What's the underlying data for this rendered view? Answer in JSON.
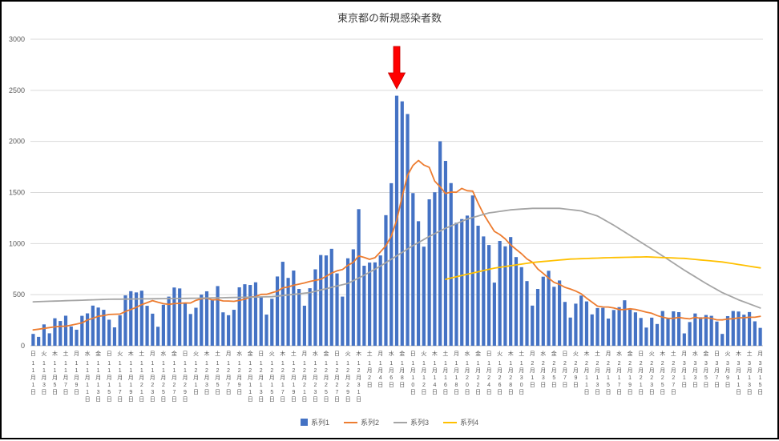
{
  "chart_data": {
    "type": "bar",
    "title": "東京都の新規感染者数",
    "ylabel": "",
    "xlabel": "",
    "ylim": [
      0,
      3000
    ],
    "yticks": [
      0,
      500,
      1000,
      1500,
      2000,
      2500,
      3000
    ],
    "x_range_description": "daily, 11月1日〜3月15日",
    "grid": "horizontal",
    "legend_position": "bottom",
    "annotation": {
      "shape": "down-arrow",
      "color": "#FF0000",
      "at_index": 67,
      "points_at_value": 2447
    },
    "tick_labels": [
      [
        "日",
        "11月1日"
      ],
      [
        "火",
        "11月3日"
      ],
      [
        "木",
        "11月5日"
      ],
      [
        "土",
        "11月7日"
      ],
      [
        "月",
        "11月9日"
      ],
      [
        "水",
        "11月11日"
      ],
      [
        "金",
        "11月13日"
      ],
      [
        "日",
        "11月15日"
      ],
      [
        "火",
        "11月17日"
      ],
      [
        "木",
        "11月19日"
      ],
      [
        "土",
        "11月21日"
      ],
      [
        "月",
        "11月23日"
      ],
      [
        "水",
        "11月25日"
      ],
      [
        "金",
        "11月27日"
      ],
      [
        "日",
        "11月29日"
      ],
      [
        "火",
        "12月1日"
      ],
      [
        "木",
        "12月3日"
      ],
      [
        "土",
        "12月5日"
      ],
      [
        "月",
        "12月7日"
      ],
      [
        "水",
        "12月9日"
      ],
      [
        "金",
        "12月11日"
      ],
      [
        "日",
        "12月13日"
      ],
      [
        "火",
        "12月15日"
      ],
      [
        "木",
        "12月17日"
      ],
      [
        "土",
        "12月19日"
      ],
      [
        "月",
        "12月21日"
      ],
      [
        "水",
        "12月23日"
      ],
      [
        "金",
        "12月25日"
      ],
      [
        "日",
        "12月27日"
      ],
      [
        "火",
        "12月29日"
      ],
      [
        "木",
        "12月31日"
      ],
      [
        "土",
        "1月2日"
      ],
      [
        "月",
        "1月4日"
      ],
      [
        "水",
        "1月6日"
      ],
      [
        "金",
        "1月8日"
      ],
      [
        "日",
        "1月10日"
      ],
      [
        "火",
        "1月12日"
      ],
      [
        "木",
        "1月14日"
      ],
      [
        "土",
        "1月16日"
      ],
      [
        "月",
        "1月18日"
      ],
      [
        "水",
        "1月20日"
      ],
      [
        "金",
        "1月22日"
      ],
      [
        "日",
        "1月24日"
      ],
      [
        "火",
        "1月26日"
      ],
      [
        "木",
        "1月28日"
      ],
      [
        "土",
        "1月30日"
      ],
      [
        "月",
        "2月1日"
      ],
      [
        "水",
        "2月3日"
      ],
      [
        "金",
        "2月5日"
      ],
      [
        "日",
        "2月7日"
      ],
      [
        "火",
        "2月9日"
      ],
      [
        "木",
        "2月11日"
      ],
      [
        "土",
        "2月13日"
      ],
      [
        "月",
        "2月15日"
      ],
      [
        "水",
        "2月17日"
      ],
      [
        "金",
        "2月19日"
      ],
      [
        "日",
        "2月21日"
      ],
      [
        "火",
        "2月23日"
      ],
      [
        "木",
        "2月25日"
      ],
      [
        "土",
        "2月27日"
      ],
      [
        "月",
        "3月1日"
      ],
      [
        "水",
        "3月3日"
      ],
      [
        "金",
        "3月5日"
      ],
      [
        "日",
        "3月7日"
      ],
      [
        "火",
        "3月9日"
      ],
      [
        "木",
        "3月11日"
      ],
      [
        "土",
        "3月13日"
      ],
      [
        "月",
        "3月15日"
      ]
    ],
    "series": [
      {
        "name": "系列1",
        "type": "bar",
        "color": "#4472C4",
        "values": [
          116,
          87,
          209,
          122,
          269,
          242,
          294,
          189,
          157,
          293,
          317,
          393,
          374,
          352,
          255,
          180,
          298,
          493,
          534,
          522,
          539,
          391,
          314,
          186,
          401,
          481,
          570,
          561,
          418,
          311,
          372,
          500,
          533,
          449,
          584,
          327,
          299,
          352,
          572,
          602,
          595,
          621,
          480,
          305,
          460,
          678,
          822,
          664,
          736,
          556,
          392,
          563,
          748,
          888,
          884,
          949,
          708,
          481,
          856,
          944,
          1337,
          783,
          814,
          816,
          884,
          1278,
          1591,
          2447,
          2392,
          2268,
          1494,
          1219,
          970,
          1433,
          1502,
          2001,
          1809,
          1592,
          1204,
          1240,
          1274,
          1471,
          1175,
          1070,
          986,
          618,
          1026,
          973,
          1064,
          868,
          769,
          633,
          393,
          556,
          676,
          734,
          577,
          639,
          429,
          276,
          412,
          491,
          434,
          307,
          369,
          371,
          266,
          350,
          378,
          445,
          353,
          327,
          272,
          178,
          275,
          213,
          340,
          270,
          337,
          329,
          121,
          232,
          316,
          279,
          301,
          293,
          237,
          116,
          290,
          340,
          335,
          304,
          330,
          239,
          175
        ]
      },
      {
        "name": "系列2",
        "type": "line",
        "color": "#ED7D31",
        "values": [
          155,
          162,
          170,
          178,
          185,
          190,
          191,
          202,
          212,
          224,
          252,
          269,
          288,
          296,
          306,
          309,
          310,
          335,
          355,
          376,
          403,
          422,
          442,
          426,
          412,
          405,
          412,
          415,
          419,
          418,
          445,
          459,
          466,
          449,
          452,
          439,
          438,
          435,
          445,
          455,
          476,
          481,
          503,
          504,
          519,
          534,
          566,
          576,
          592,
          603,
          615,
          630,
          640,
          650,
          681,
          711,
          733,
          746,
          788,
          816,
          880,
          865,
          846,
          862,
          919,
          979,
          1072,
          1230,
          1460,
          1668,
          1765,
          1813,
          1769,
          1746,
          1611,
          1555,
          1490,
          1504,
          1502,
          1540,
          1517,
          1513,
          1395,
          1289,
          1203,
          1119,
          1089,
          1046,
          987,
          944,
          901,
          850,
          818,
          751,
          708,
          661,
          620,
          601,
          572,
          555,
          535,
          508,
          465,
          427,
          388,
          380,
          379,
          370,
          354,
          355,
          362,
          356,
          342,
          329,
          318,
          295,
          280,
          268,
          269,
          277,
          269,
          263,
          278,
          269,
          274,
          267,
          254,
          253,
          262,
          265,
          273,
          274,
          279,
          279,
          288
        ]
      },
      {
        "name": "系列3",
        "type": "line",
        "color": "#A5A5A5",
        "points": [
          [
            0,
            430
          ],
          [
            14,
            455
          ],
          [
            30,
            465
          ],
          [
            44,
            480
          ],
          [
            51,
            520
          ],
          [
            58,
            610
          ],
          [
            61,
            690
          ],
          [
            64,
            780
          ],
          [
            67,
            880
          ],
          [
            70,
            980
          ],
          [
            73,
            1070
          ],
          [
            76,
            1150
          ],
          [
            80,
            1240
          ],
          [
            84,
            1300
          ],
          [
            88,
            1330
          ],
          [
            92,
            1345
          ],
          [
            97,
            1345
          ],
          [
            101,
            1320
          ],
          [
            104,
            1270
          ],
          [
            107,
            1180
          ],
          [
            110,
            1080
          ],
          [
            113,
            980
          ],
          [
            116,
            880
          ],
          [
            120,
            740
          ],
          [
            124,
            610
          ],
          [
            127,
            520
          ],
          [
            130,
            450
          ],
          [
            134,
            370
          ]
        ]
      },
      {
        "name": "系列4",
        "type": "line",
        "color": "#FFC000",
        "points": [
          [
            76,
            650
          ],
          [
            80,
            700
          ],
          [
            85,
            760
          ],
          [
            92,
            815
          ],
          [
            99,
            848
          ],
          [
            106,
            862
          ],
          [
            113,
            870
          ],
          [
            120,
            855
          ],
          [
            127,
            820
          ],
          [
            134,
            762
          ]
        ]
      }
    ]
  }
}
